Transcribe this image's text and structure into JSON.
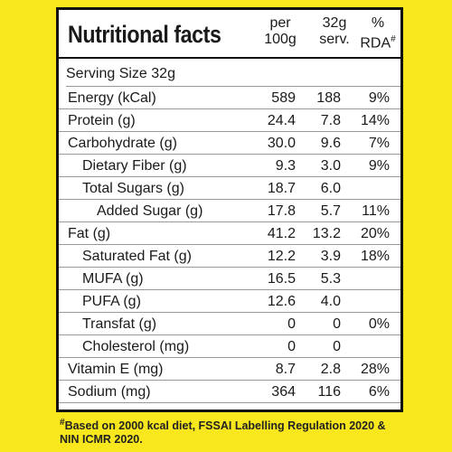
{
  "title": "Nutritional facts",
  "columns": {
    "per_line1": "per",
    "per_line2": "100g",
    "serv_line1": "32g",
    "serv_line2": "serv.",
    "rda_line1": "%",
    "rda_line2": "RDA",
    "rda_mark": "#"
  },
  "serving": "Serving Size 32g",
  "rows": [
    {
      "name": "Energy (kCal)",
      "per100": "589",
      "serv": "188",
      "rda": "9%"
    },
    {
      "name": "Protein (g)",
      "per100": "24.4",
      "serv": "7.8",
      "rda": "14%"
    },
    {
      "name": "Carbohydrate (g)",
      "per100": "30.0",
      "serv": "9.6",
      "rda": "7%"
    },
    {
      "name": "Dietary Fiber (g)",
      "per100": "9.3",
      "serv": "3.0",
      "rda": "9%"
    },
    {
      "name": "Total Sugars (g)",
      "per100": "18.7",
      "serv": "6.0",
      "rda": ""
    },
    {
      "name": "Added Sugar (g)",
      "per100": "17.8",
      "serv": "5.7",
      "rda": "11%"
    },
    {
      "name": "Fat (g)",
      "per100": "41.2",
      "serv": "13.2",
      "rda": "20%"
    },
    {
      "name": "Saturated Fat (g)",
      "per100": "12.2",
      "serv": "3.9",
      "rda": "18%"
    },
    {
      "name": "MUFA (g)",
      "per100": "16.5",
      "serv": "5.3",
      "rda": ""
    },
    {
      "name": "PUFA (g)",
      "per100": "12.6",
      "serv": "4.0",
      "rda": ""
    },
    {
      "name": "Transfat (g)",
      "per100": "0",
      "serv": "0",
      "rda": "0%"
    },
    {
      "name": "Cholesterol (mg)",
      "per100": "0",
      "serv": "0",
      "rda": ""
    },
    {
      "name": "Vitamin E (mg)",
      "per100": "8.7",
      "serv": "2.8",
      "rda": "28%"
    },
    {
      "name": "Sodium (mg)",
      "per100": "364",
      "serv": "116",
      "rda": "6%"
    }
  ],
  "footnote": {
    "mark": "#",
    "text": "Based on 2000 kcal diet, FSSAI Labelling Regulation 2020 & NIN ICMR 2020."
  }
}
